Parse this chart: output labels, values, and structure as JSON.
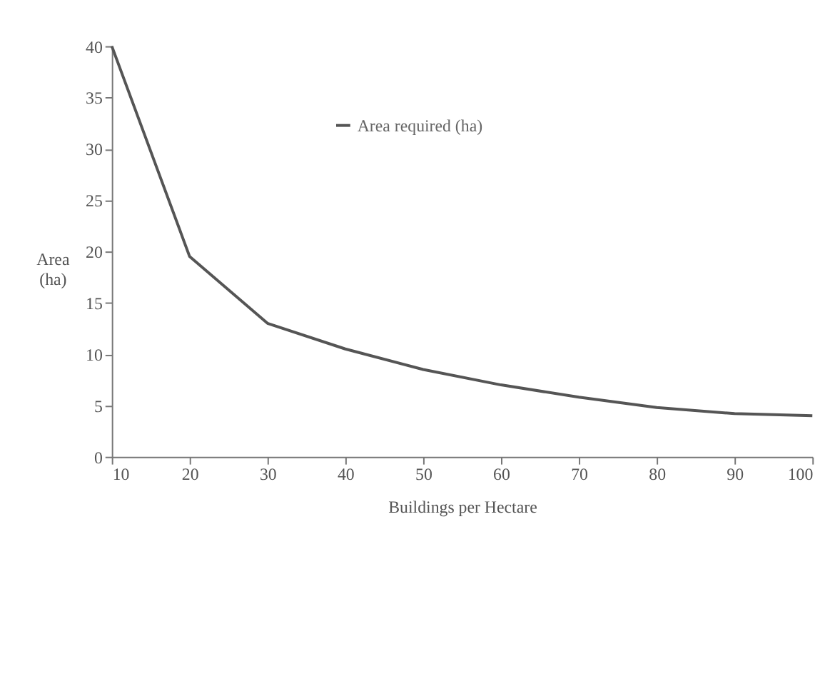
{
  "chart_data": {
    "type": "line",
    "xlabel": "Buildings per Hectare",
    "ylabel": "Area\n(ha)",
    "x": [
      10,
      20,
      30,
      40,
      50,
      60,
      70,
      80,
      90,
      100
    ],
    "series": [
      {
        "name": "Area required (ha)",
        "color": "#555555",
        "values": [
          40,
          19.5,
          13,
          10.5,
          8.5,
          7,
          5.8,
          4.8,
          4.2,
          4
        ]
      }
    ],
    "xlim": [
      10,
      100
    ],
    "xticks": [
      10,
      20,
      30,
      40,
      50,
      60,
      70,
      80,
      90,
      100
    ],
    "ylim": [
      0,
      40
    ],
    "yticks": [
      0,
      5,
      10,
      15,
      20,
      25,
      30,
      35,
      40
    ],
    "grid": false,
    "legend": "top",
    "marker": "none",
    "line_style": "solid"
  }
}
